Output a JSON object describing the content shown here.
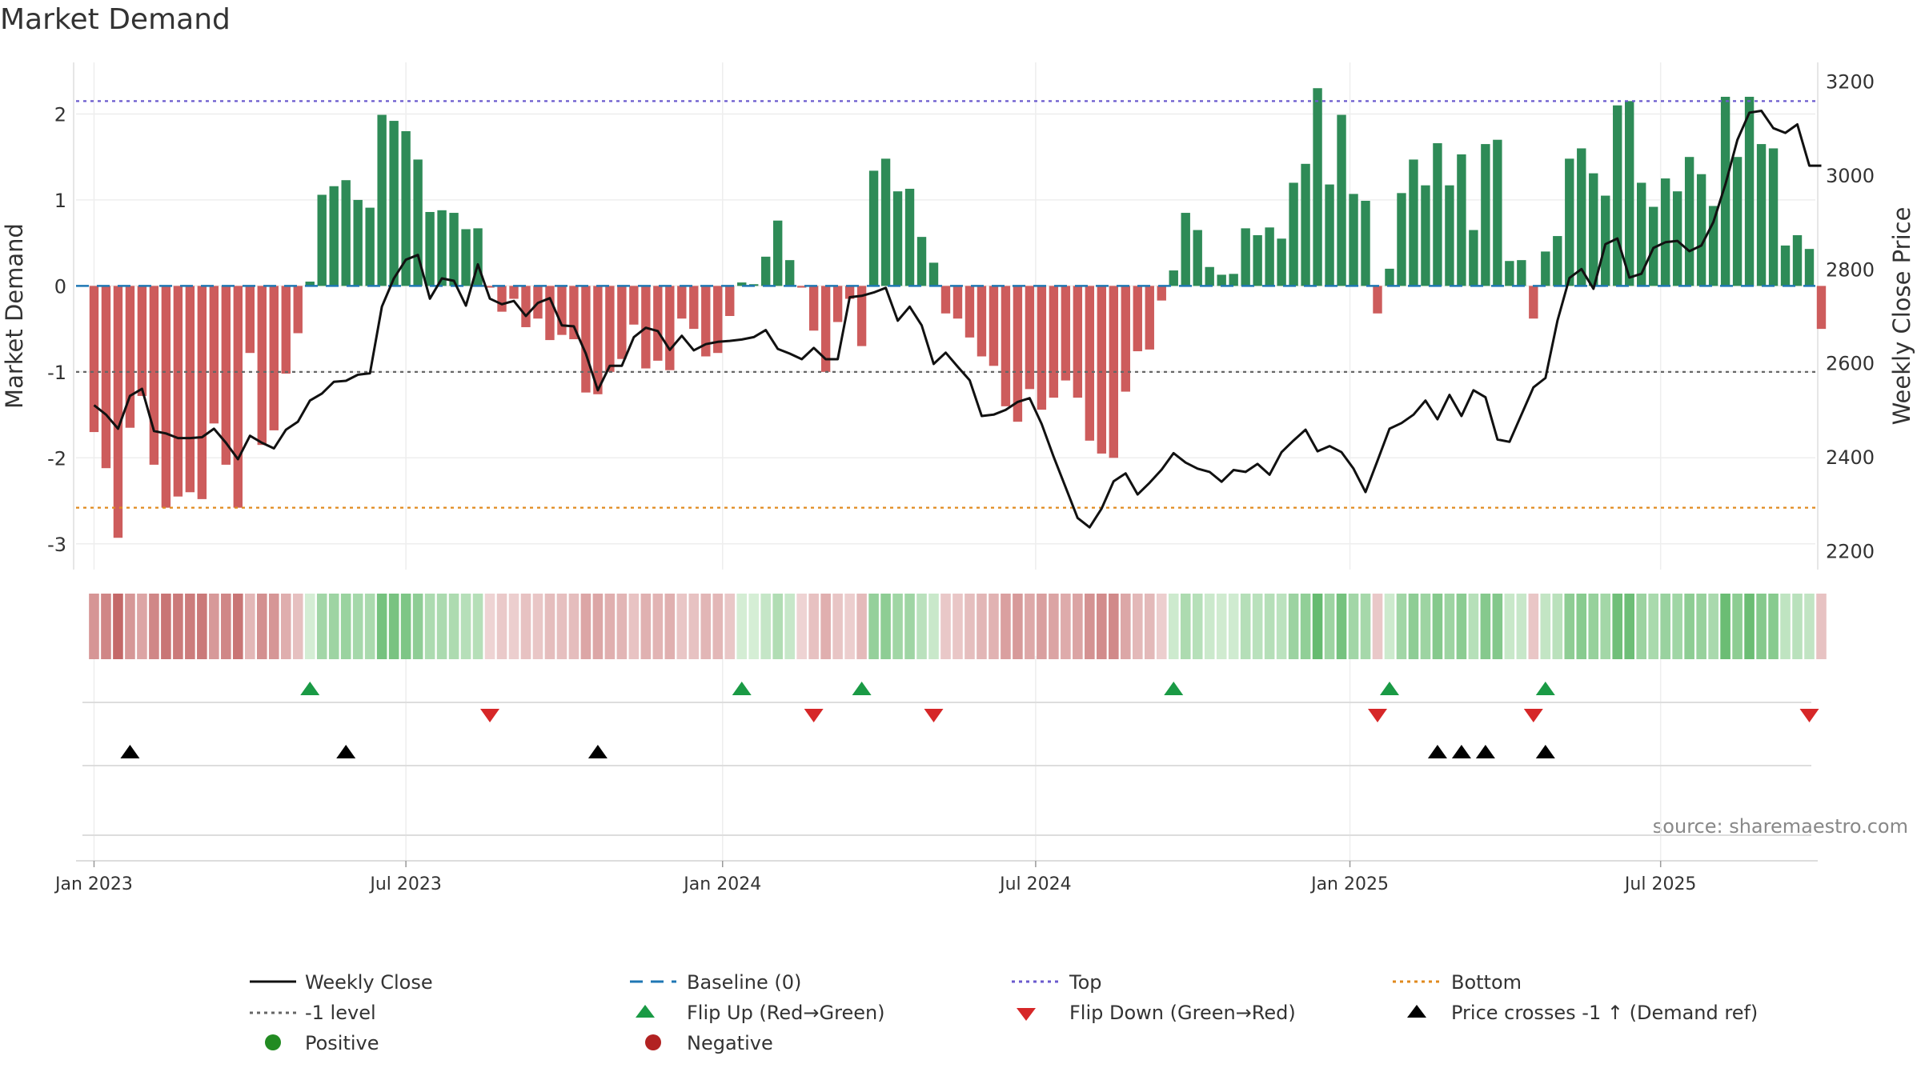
{
  "chart_data": {
    "type": "bar",
    "title": "Market Demand",
    "ylabel": "Market Demand",
    "y2label": "Weekly Close Price",
    "ylim": [
      -3.3,
      2.6
    ],
    "y2lim": [
      2160,
      3240
    ],
    "yticks": [
      -3,
      -2,
      -1,
      0,
      1,
      2
    ],
    "y2ticks": [
      2200,
      2400,
      2600,
      2800,
      3000,
      3200
    ],
    "xlim": [
      -1.5,
      143.5
    ],
    "xticks": [
      {
        "x": 0,
        "label": "Jan 2023"
      },
      {
        "x": 26,
        "label": "Jul 2023"
      },
      {
        "x": 52.4,
        "label": "Jan 2024"
      },
      {
        "x": 78.5,
        "label": "Jul 2024"
      },
      {
        "x": 104.7,
        "label": "Jan 2025"
      },
      {
        "x": 130.6,
        "label": "Jul 2025"
      }
    ],
    "reference_lines": {
      "top": 2.15,
      "minus_one": -1.0,
      "bottom": -2.58,
      "baseline": 0
    },
    "demand": [
      -1.7,
      -2.12,
      -2.93,
      -1.65,
      -1.28,
      -2.08,
      -2.58,
      -2.45,
      -2.4,
      -2.48,
      -1.6,
      -2.08,
      -2.58,
      -0.78,
      -1.85,
      -1.68,
      -1.02,
      -0.55,
      0.05,
      1.06,
      1.16,
      1.23,
      1.0,
      0.91,
      1.99,
      1.92,
      1.8,
      1.47,
      0.86,
      0.88,
      0.85,
      0.66,
      0.67,
      -0.02,
      -0.3,
      -0.15,
      -0.48,
      -0.38,
      -0.63,
      -0.57,
      -0.62,
      -1.24,
      -1.26,
      -1.0,
      -0.85,
      -0.45,
      -0.96,
      -0.87,
      -0.98,
      -0.38,
      -0.5,
      -0.82,
      -0.78,
      -0.35,
      0.04,
      0.02,
      0.34,
      0.76,
      0.3,
      -0.02,
      -0.52,
      -1.0,
      -0.42,
      -0.15,
      -0.7,
      1.34,
      1.48,
      1.1,
      1.13,
      0.57,
      0.27,
      -0.32,
      -0.38,
      -0.6,
      -0.82,
      -0.93,
      -1.4,
      -1.58,
      -1.2,
      -1.44,
      -1.3,
      -1.1,
      -1.3,
      -1.8,
      -1.95,
      -2.0,
      -1.23,
      -0.76,
      -0.74,
      -0.17,
      0.18,
      0.85,
      0.65,
      0.22,
      0.13,
      0.14,
      0.67,
      0.59,
      0.68,
      0.55,
      1.2,
      1.42,
      2.3,
      1.18,
      1.99,
      1.07,
      0.99,
      -0.32,
      0.2,
      1.08,
      1.47,
      1.17,
      1.66,
      1.17,
      1.53,
      0.65,
      1.65,
      1.7,
      0.29,
      0.3,
      -0.38,
      0.4,
      0.58,
      1.48,
      1.6,
      1.31,
      1.05,
      2.1,
      2.15,
      1.2,
      0.92,
      1.25,
      1.1,
      1.5,
      1.3,
      0.93,
      2.2,
      1.5,
      2.2,
      1.65,
      1.6,
      0.47,
      0.59,
      0.43,
      -0.5
    ],
    "weekly_close": [
      2510,
      2490,
      2460,
      2530,
      2545,
      2455,
      2450,
      2440,
      2440,
      2442,
      2460,
      2430,
      2395,
      2445,
      2430,
      2418,
      2458,
      2475,
      2520,
      2535,
      2560,
      2562,
      2575,
      2578,
      2720,
      2780,
      2820,
      2830,
      2737,
      2780,
      2775,
      2722,
      2810,
      2737,
      2725,
      2732,
      2700,
      2728,
      2738,
      2680,
      2678,
      2620,
      2542,
      2594,
      2594,
      2655,
      2675,
      2668,
      2628,
      2658,
      2627,
      2640,
      2645,
      2647,
      2650,
      2655,
      2670,
      2630,
      2620,
      2608,
      2632,
      2608,
      2608,
      2740,
      2743,
      2750,
      2760,
      2690,
      2720,
      2680,
      2598,
      2622,
      2592,
      2563,
      2487,
      2490,
      2500,
      2517,
      2525,
      2470,
      2400,
      2335,
      2270,
      2250,
      2290,
      2348,
      2365,
      2320,
      2345,
      2373,
      2408,
      2388,
      2375,
      2368,
      2347,
      2372,
      2368,
      2385,
      2362,
      2410,
      2435,
      2458,
      2412,
      2423,
      2410,
      2375,
      2325,
      2392,
      2460,
      2472,
      2490,
      2520,
      2480,
      2532,
      2487,
      2542,
      2527,
      2437,
      2432,
      2490,
      2548,
      2568,
      2690,
      2781,
      2800,
      2758,
      2853,
      2865,
      2782,
      2790,
      2845,
      2857,
      2860,
      2838,
      2850,
      2900,
      2980,
      3075,
      3133,
      3137,
      3100,
      3090,
      3108,
      3020,
      3020
    ],
    "flip_up_x": [
      18,
      54,
      64,
      90,
      108,
      121
    ],
    "flip_down_x": [
      33,
      60,
      70,
      107,
      120,
      143
    ],
    "price_cross_x": [
      3,
      21,
      42,
      112,
      114,
      116,
      121
    ],
    "annotation": "source: sharemaestro.com",
    "legend": {
      "weekly_close": "Weekly Close",
      "baseline": "Baseline (0)",
      "top": "Top",
      "bottom": "Bottom",
      "minus_one": "-1 level",
      "flip_up": "Flip Up (Red→Green)",
      "flip_down": "Flip Down (Green→Red)",
      "price_cross": "Price crosses -1 ↑ (Demand ref)",
      "positive": "Positive",
      "negative": "Negative"
    },
    "colors": {
      "positive_bar": "#2e8b57",
      "negative_bar": "#cd5c5c",
      "close_line": "#111111",
      "baseline": "#1f77b4",
      "top_line": "#6a5acd",
      "bottom_line": "#e08a1e",
      "minus_one_line": "#666666",
      "flip_up": "#1a9a45",
      "flip_down": "#d62728",
      "price_cross": "#000000",
      "positive_dot": "#228b22",
      "negative_dot": "#b22222"
    }
  }
}
